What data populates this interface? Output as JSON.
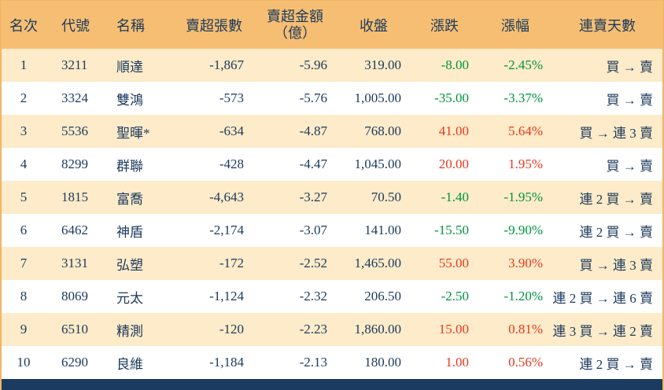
{
  "chart_data": {
    "type": "table",
    "title": "",
    "columns": [
      {
        "key": "rank",
        "label": "名次"
      },
      {
        "key": "code",
        "label": "代號"
      },
      {
        "key": "name",
        "label": "名稱"
      },
      {
        "key": "sell_volume",
        "label": "賣超張數"
      },
      {
        "key": "sell_amount",
        "label": "賣超金額",
        "label2": "（億）"
      },
      {
        "key": "close",
        "label": "收盤"
      },
      {
        "key": "change",
        "label": "漲跌"
      },
      {
        "key": "change_pct",
        "label": "漲幅"
      },
      {
        "key": "streak",
        "label": "連賣天數"
      }
    ],
    "rows": [
      {
        "rank": "1",
        "code": "3211",
        "name": "順達",
        "sell_volume": "-1,867",
        "sell_amount": "-5.96",
        "close": "319.00",
        "change": "-8.00",
        "change_pct": "-2.45%",
        "direction": "down",
        "streak": "買 → 賣"
      },
      {
        "rank": "2",
        "code": "3324",
        "name": "雙鴻",
        "sell_volume": "-573",
        "sell_amount": "-5.76",
        "close": "1,005.00",
        "change": "-35.00",
        "change_pct": "-3.37%",
        "direction": "down",
        "streak": "買 → 賣"
      },
      {
        "rank": "3",
        "code": "5536",
        "name": "聖暉*",
        "sell_volume": "-634",
        "sell_amount": "-4.87",
        "close": "768.00",
        "change": "41.00",
        "change_pct": "5.64%",
        "direction": "up",
        "streak": "買 → 連 3 賣"
      },
      {
        "rank": "4",
        "code": "8299",
        "name": "群聯",
        "sell_volume": "-428",
        "sell_amount": "-4.47",
        "close": "1,045.00",
        "change": "20.00",
        "change_pct": "1.95%",
        "direction": "up",
        "streak": "買 → 賣"
      },
      {
        "rank": "5",
        "code": "1815",
        "name": "富喬",
        "sell_volume": "-4,643",
        "sell_amount": "-3.27",
        "close": "70.50",
        "change": "-1.40",
        "change_pct": "-1.95%",
        "direction": "down",
        "streak": "連 2 買 → 賣"
      },
      {
        "rank": "6",
        "code": "6462",
        "name": "神盾",
        "sell_volume": "-2,174",
        "sell_amount": "-3.07",
        "close": "141.00",
        "change": "-15.50",
        "change_pct": "-9.90%",
        "direction": "down",
        "streak": "連 2 買 → 賣"
      },
      {
        "rank": "7",
        "code": "3131",
        "name": "弘塑",
        "sell_volume": "-172",
        "sell_amount": "-2.52",
        "close": "1,465.00",
        "change": "55.00",
        "change_pct": "3.90%",
        "direction": "up",
        "streak": "買 → 連 3 賣"
      },
      {
        "rank": "8",
        "code": "8069",
        "name": "元太",
        "sell_volume": "-1,124",
        "sell_amount": "-2.32",
        "close": "206.50",
        "change": "-2.50",
        "change_pct": "-1.20%",
        "direction": "down",
        "streak": "連 2 買 → 連 6 賣"
      },
      {
        "rank": "9",
        "code": "6510",
        "name": "精測",
        "sell_volume": "-120",
        "sell_amount": "-2.23",
        "close": "1,860.00",
        "change": "15.00",
        "change_pct": "0.81%",
        "direction": "up",
        "streak": "連 3 買 → 連 2 賣"
      },
      {
        "rank": "10",
        "code": "6290",
        "name": "良維",
        "sell_volume": "-1,184",
        "sell_amount": "-2.13",
        "close": "180.00",
        "change": "1.00",
        "change_pct": "0.56%",
        "direction": "up",
        "streak": "連 2 買 → 賣"
      }
    ]
  },
  "colors": {
    "header_bg": "#f6be73",
    "row_alt_bg": "#fdebc9",
    "row_bg": "#ffffff",
    "footer_bg": "#1b3c60",
    "text": "#1b3a5c",
    "up_red": "#e8391d",
    "down_green": "#009440",
    "border": "#f2b566"
  }
}
